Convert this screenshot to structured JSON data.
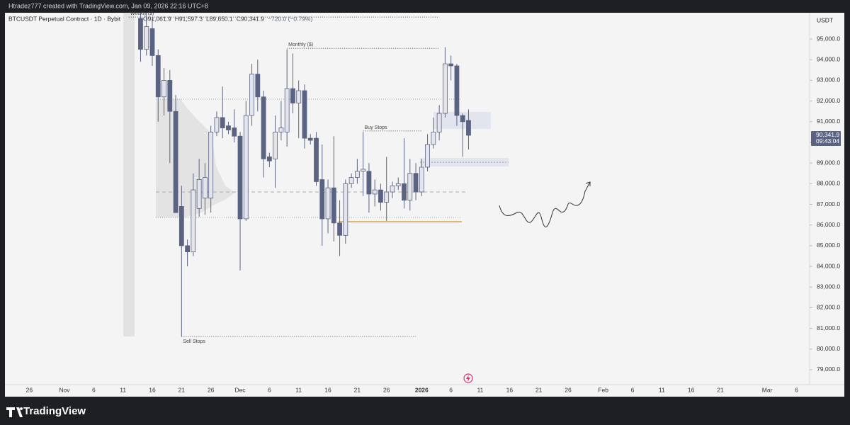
{
  "header": {
    "credit": "Htradez777 created with TradingView.com, Jan 09, 2026 22:16 UTC+8",
    "logo": "TradingView"
  },
  "chart_data": {
    "type": "candlestick",
    "symbol": "BTCUSDT Perpetual Contract · 1D · Bybit",
    "ohlc_labels": [
      "O91,061.9",
      "H91,597.3",
      "L89,650.1",
      "C90,341.9",
      "−720.0 (−0.79%)"
    ],
    "currency": "USDT",
    "last_price_label": "90,341.9",
    "countdown": "09:43:04",
    "up_color": "#e3e5ea",
    "down_color": "#5b6383",
    "x": [
      "2025-11-14",
      "2025-11-15",
      "2025-11-16",
      "2025-11-17",
      "2025-11-18",
      "2025-11-19",
      "2025-11-20",
      "2025-11-21",
      "2025-11-22",
      "2025-11-23",
      "2025-11-24",
      "2025-11-25",
      "2025-11-26",
      "2025-11-27",
      "2025-11-28",
      "2025-11-29",
      "2025-11-30",
      "2025-12-01",
      "2025-12-02",
      "2025-12-03",
      "2025-12-04",
      "2025-12-05",
      "2025-12-06",
      "2025-12-07",
      "2025-12-08",
      "2025-12-09",
      "2025-12-10",
      "2025-12-11",
      "2025-12-12",
      "2025-12-13",
      "2025-12-14",
      "2025-12-15",
      "2025-12-16",
      "2025-12-17",
      "2025-12-18",
      "2025-12-19",
      "2025-12-20",
      "2025-12-21",
      "2025-12-22",
      "2025-12-23",
      "2025-12-24",
      "2025-12-25",
      "2025-12-26",
      "2025-12-27",
      "2025-12-28",
      "2025-12-29",
      "2025-12-30",
      "2025-12-31",
      "2026-01-01",
      "2026-01-02",
      "2026-01-03",
      "2026-01-04",
      "2026-01-05",
      "2026-01-06",
      "2026-01-07",
      "2026-01-08",
      "2026-01-09"
    ],
    "open": [
      96000,
      94500,
      95500,
      94200,
      92200,
      93000,
      91500,
      86900,
      85000,
      84700,
      86800,
      87300,
      87300,
      90500,
      91200,
      90800,
      90700,
      90300,
      86300,
      91300,
      93300,
      92200,
      89300,
      89200,
      90500,
      90500,
      92600,
      91900,
      92500,
      90200,
      90200,
      88200,
      86300,
      87800,
      86100,
      85500,
      88000,
      88300,
      88600,
      88600,
      87500,
      87700,
      87100,
      87600,
      87900,
      88000,
      87200,
      88500,
      87600,
      88800,
      89900,
      90500,
      91400,
      93800,
      93700,
      91300,
      91061.9
    ],
    "high": [
      96270,
      96270,
      96000,
      94500,
      93600,
      93500,
      92300,
      87900,
      85300,
      88500,
      89200,
      89000,
      90800,
      91500,
      92700,
      91000,
      91600,
      90500,
      92000,
      93800,
      94000,
      92500,
      89500,
      91300,
      92000,
      94500,
      94300,
      93000,
      92800,
      90400,
      90500,
      89900,
      88200,
      90300,
      87200,
      88200,
      88500,
      89200,
      90500,
      89000,
      88200,
      88000,
      89300,
      88100,
      88300,
      90200,
      89200,
      89000,
      89200,
      90400,
      91200,
      91800,
      94600,
      94200,
      93800,
      91400,
      91597.3
    ],
    "low": [
      93900,
      94200,
      93700,
      91000,
      91300,
      89000,
      86600,
      80600,
      84000,
      84500,
      86400,
      86500,
      86600,
      90300,
      90200,
      90400,
      90000,
      83800,
      86200,
      90800,
      91500,
      88300,
      88800,
      87800,
      90100,
      89800,
      91400,
      90200,
      89700,
      89900,
      87900,
      85000,
      85600,
      85200,
      84500,
      85100,
      87800,
      88000,
      87400,
      86600,
      86900,
      86700,
      86200,
      87300,
      87700,
      86800,
      86700,
      87200,
      87400,
      88600,
      89700,
      90100,
      91200,
      93000,
      90800,
      89300,
      89650.1
    ],
    "close": [
      94500,
      95600,
      94200,
      92200,
      93000,
      91500,
      86600,
      85000,
      84700,
      87700,
      88200,
      88300,
      90500,
      91200,
      90700,
      90600,
      90300,
      86300,
      91300,
      93300,
      92200,
      89200,
      89100,
      90500,
      90700,
      92600,
      91900,
      92500,
      90200,
      90100,
      88100,
      86300,
      87800,
      86100,
      85500,
      88000,
      88300,
      88600,
      88700,
      87500,
      87700,
      87100,
      87600,
      87900,
      88000,
      87200,
      88500,
      87600,
      88800,
      89900,
      90500,
      91400,
      93800,
      93700,
      91300,
      91000,
      90341.9
    ],
    "ylim": [
      78280,
      96270
    ],
    "yticks": [
      {
        "value": 79000,
        "label": "79,000.0"
      },
      {
        "value": 80000,
        "label": "80,000.0"
      },
      {
        "value": 81000,
        "label": "81,000.0"
      },
      {
        "value": 82000,
        "label": "82,000.0"
      },
      {
        "value": 83000,
        "label": "83,000.0"
      },
      {
        "value": 84000,
        "label": "84,000.0"
      },
      {
        "value": 85000,
        "label": "85,000.0"
      },
      {
        "value": 86000,
        "label": "86,000.0"
      },
      {
        "value": 87000,
        "label": "87,000.0"
      },
      {
        "value": 88000,
        "label": "88,000.0"
      },
      {
        "value": 89000,
        "label": "89,000.0"
      },
      {
        "value": 90000,
        "label": "90,000.0"
      },
      {
        "value": 91000,
        "label": "91,000.0"
      },
      {
        "value": 92000,
        "label": "92,000.0"
      },
      {
        "value": 93000,
        "label": "93,000.0"
      },
      {
        "value": 94000,
        "label": "94,000.0"
      },
      {
        "value": 95000,
        "label": "95,000.0"
      }
    ],
    "xlim": [
      "2025-10-22",
      "2026-03-08"
    ],
    "xticks": [
      {
        "value": "2025-10-26",
        "label": "26"
      },
      {
        "value": "2025-11-01",
        "label": "Nov"
      },
      {
        "value": "2025-11-06",
        "label": "6"
      },
      {
        "value": "2025-11-11",
        "label": "11"
      },
      {
        "value": "2025-11-16",
        "label": "16"
      },
      {
        "value": "2025-11-21",
        "label": "21"
      },
      {
        "value": "2025-11-26",
        "label": "26"
      },
      {
        "value": "2025-12-01",
        "label": "Dec"
      },
      {
        "value": "2025-12-06",
        "label": "6"
      },
      {
        "value": "2025-12-11",
        "label": "11"
      },
      {
        "value": "2025-12-16",
        "label": "16"
      },
      {
        "value": "2025-12-21",
        "label": "21"
      },
      {
        "value": "2025-12-26",
        "label": "26"
      },
      {
        "value": "2026-01-01",
        "label": "2026"
      },
      {
        "value": "2026-01-06",
        "label": "6"
      },
      {
        "value": "2026-01-11",
        "label": "11"
      },
      {
        "value": "2026-01-16",
        "label": "16"
      },
      {
        "value": "2026-01-21",
        "label": "21"
      },
      {
        "value": "2026-01-26",
        "label": "26"
      },
      {
        "value": "2026-02-01",
        "label": "Feb"
      },
      {
        "value": "2026-02-06",
        "label": "6"
      },
      {
        "value": "2026-02-11",
        "label": "11"
      },
      {
        "value": "2026-02-16",
        "label": "16"
      },
      {
        "value": "2026-02-21",
        "label": "21"
      },
      {
        "value": "2026-03-01",
        "label": "Mar"
      },
      {
        "value": "2026-03-06",
        "label": "6"
      }
    ],
    "levels": [
      {
        "label": "Weekly ($)",
        "value": 96060,
        "from": "2025-11-12",
        "to": "2026-01-04"
      },
      {
        "label": "Monthly ($)",
        "value": 94550,
        "from": "2025-12-09",
        "to": "2026-01-04"
      },
      {
        "label": "Buy Stops",
        "value": 90550,
        "from": "2025-12-22",
        "to": "2026-01-01"
      },
      {
        "label": "Sell Stops",
        "value": 80610,
        "from": "2025-11-21",
        "to": "2025-12-31"
      }
    ]
  }
}
